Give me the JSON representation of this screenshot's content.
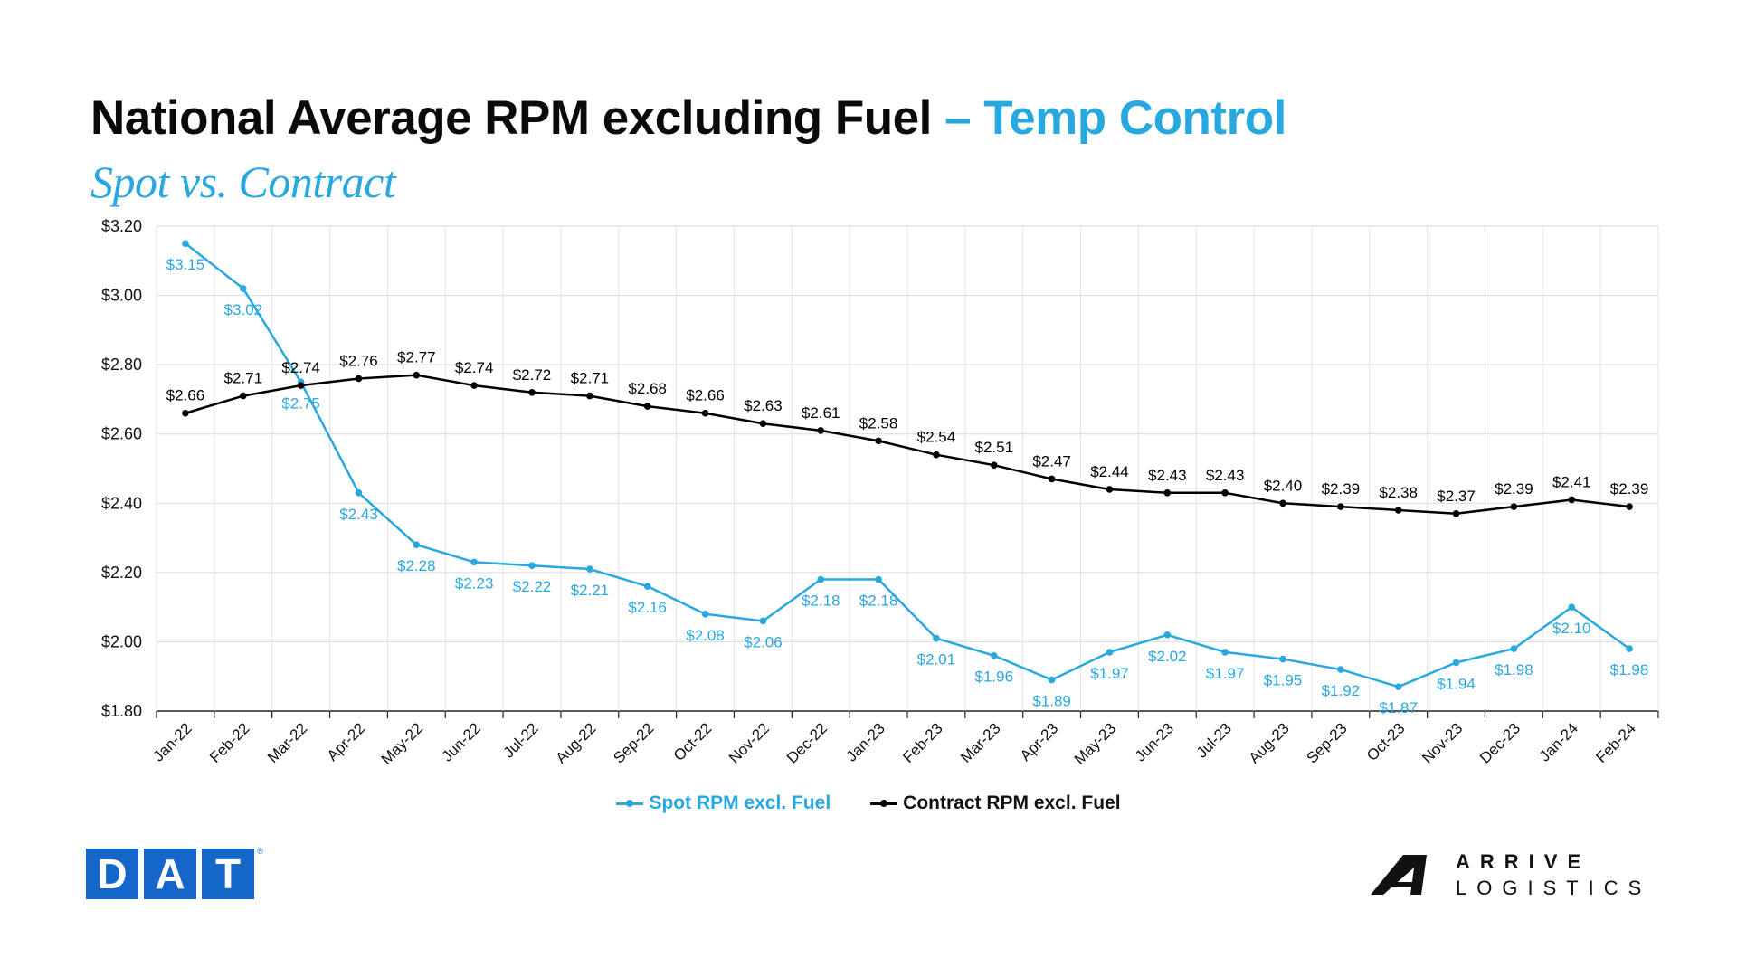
{
  "header": {
    "title_main": "National Average RPM excluding Fuel",
    "title_accent": "– Temp Control",
    "subtitle": "Spot vs. Contract"
  },
  "colors": {
    "spot": "#29a8e0",
    "contract": "#000000",
    "accent": "#29a8e0",
    "dat_blue": "#1466c8"
  },
  "chart_data": {
    "type": "line",
    "categories": [
      "Jan-22",
      "Feb-22",
      "Mar-22",
      "Apr-22",
      "May-22",
      "Jun-22",
      "Jul-22",
      "Aug-22",
      "Sep-22",
      "Oct-22",
      "Nov-22",
      "Dec-22",
      "Jan-23",
      "Feb-23",
      "Mar-23",
      "Apr-23",
      "May-23",
      "Jun-23",
      "Jul-23",
      "Aug-23",
      "Sep-23",
      "Oct-23",
      "Nov-23",
      "Dec-23",
      "Jan-24",
      "Feb-24"
    ],
    "series": [
      {
        "name": "Spot RPM excl. Fuel",
        "color": "#29a8e0",
        "values": [
          3.15,
          3.02,
          2.75,
          2.43,
          2.28,
          2.23,
          2.22,
          2.21,
          2.16,
          2.08,
          2.06,
          2.18,
          2.18,
          2.01,
          1.96,
          1.89,
          1.97,
          2.02,
          1.97,
          1.95,
          1.92,
          1.87,
          1.94,
          1.98,
          2.1,
          1.98
        ]
      },
      {
        "name": "Contract RPM excl. Fuel",
        "color": "#000000",
        "values": [
          2.66,
          2.71,
          2.74,
          2.76,
          2.77,
          2.74,
          2.72,
          2.71,
          2.68,
          2.66,
          2.63,
          2.61,
          2.58,
          2.54,
          2.51,
          2.47,
          2.44,
          2.43,
          2.43,
          2.4,
          2.39,
          2.38,
          2.37,
          2.39,
          2.41,
          2.39
        ]
      }
    ],
    "ylim": [
      1.8,
      3.2
    ],
    "yticks": [
      1.8,
      2.0,
      2.2,
      2.4,
      2.6,
      2.8,
      3.0,
      3.2
    ],
    "ytick_labels": [
      "$1.80",
      "$2.00",
      "$2.20",
      "$2.40",
      "$2.60",
      "$2.80",
      "$3.00",
      "$3.20"
    ],
    "title": "",
    "xlabel": "",
    "ylabel": "",
    "grid": true,
    "legend": "bottom",
    "data_labels": true
  },
  "logos": {
    "dat": [
      "D",
      "A",
      "T"
    ],
    "dat_mark": "®",
    "arrive_word1": "ARRIVE",
    "arrive_word2": "LOGISTICS"
  }
}
